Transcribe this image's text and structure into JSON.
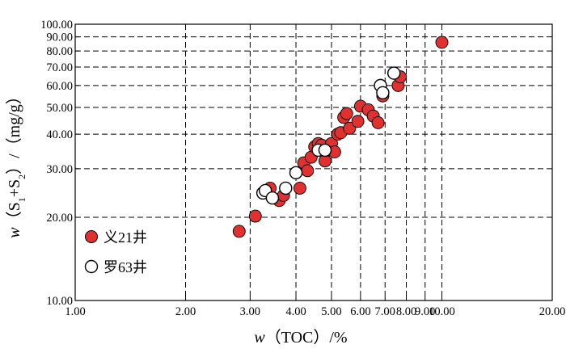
{
  "chart_data": {
    "type": "scatter",
    "x_scale": "log",
    "y_scale": "log",
    "xlim": [
      1,
      20
    ],
    "ylim": [
      10,
      100
    ],
    "x_ticks": [
      {
        "value": 1,
        "label": "1.00"
      },
      {
        "value": 2,
        "label": "2.00"
      },
      {
        "value": 3,
        "label": "3.00"
      },
      {
        "value": 4,
        "label": "4.00"
      },
      {
        "value": 5,
        "label": "5.00"
      },
      {
        "value": 6,
        "label": "6.00"
      },
      {
        "value": 7,
        "label": "7.00"
      },
      {
        "value": 8,
        "label": "8.00"
      },
      {
        "value": 9,
        "label": "9.00"
      },
      {
        "value": 10,
        "label": "10.00"
      },
      {
        "value": 20,
        "label": "20.00"
      }
    ],
    "y_ticks": [
      {
        "value": 10,
        "label": "10.00"
      },
      {
        "value": 20,
        "label": "20.00"
      },
      {
        "value": 30,
        "label": "30.00"
      },
      {
        "value": 40,
        "label": "40.00"
      },
      {
        "value": 50,
        "label": "50.00"
      },
      {
        "value": 60,
        "label": "60.00"
      },
      {
        "value": 70,
        "label": "70.00"
      },
      {
        "value": 80,
        "label": "80.00"
      },
      {
        "value": 90,
        "label": "90.00"
      },
      {
        "value": 100,
        "label": "100.00"
      }
    ],
    "grid": "dashed",
    "xlabel": {
      "italic": "w",
      "text": "（TOC）/%"
    },
    "ylabel": {
      "italic": "w",
      "pre": "（S",
      "sub1": "1",
      "mid": "+S",
      "sub2": "2",
      "post": "）/（mg/g）"
    },
    "legend_position": "bottom-left",
    "series": [
      {
        "name": "义21井",
        "marker": "filled-circle",
        "color": "#e03030",
        "points": [
          [
            2.8,
            17.8
          ],
          [
            3.1,
            20.2
          ],
          [
            3.4,
            25.5
          ],
          [
            3.6,
            23.0
          ],
          [
            3.7,
            24.0
          ],
          [
            4.0,
            29.0
          ],
          [
            4.1,
            25.5
          ],
          [
            4.2,
            31.5
          ],
          [
            4.3,
            29.5
          ],
          [
            4.4,
            33.0
          ],
          [
            4.5,
            36.0
          ],
          [
            4.6,
            37.0
          ],
          [
            4.7,
            36.5
          ],
          [
            4.8,
            32.0
          ],
          [
            4.9,
            35.0
          ],
          [
            5.0,
            37.0
          ],
          [
            5.1,
            34.5
          ],
          [
            5.2,
            40.0
          ],
          [
            5.3,
            40.5
          ],
          [
            5.4,
            46.0
          ],
          [
            5.5,
            47.5
          ],
          [
            5.6,
            42.0
          ],
          [
            5.9,
            44.5
          ],
          [
            6.0,
            50.5
          ],
          [
            6.3,
            49.0
          ],
          [
            6.5,
            46.5
          ],
          [
            6.7,
            44.0
          ],
          [
            6.9,
            55.0
          ],
          [
            7.6,
            60.0
          ],
          [
            7.7,
            64.5
          ],
          [
            10.0,
            86.0
          ]
        ]
      },
      {
        "name": "罗63井",
        "marker": "open-circle",
        "color": "#ffffff",
        "points": [
          [
            3.25,
            24.5
          ],
          [
            3.3,
            25.0
          ],
          [
            3.45,
            23.5
          ],
          [
            3.75,
            25.5
          ],
          [
            4.0,
            29.0
          ],
          [
            4.6,
            35.0
          ],
          [
            4.8,
            35.0
          ],
          [
            6.8,
            60.0
          ],
          [
            6.9,
            56.5
          ],
          [
            7.4,
            66.5
          ]
        ]
      }
    ]
  }
}
